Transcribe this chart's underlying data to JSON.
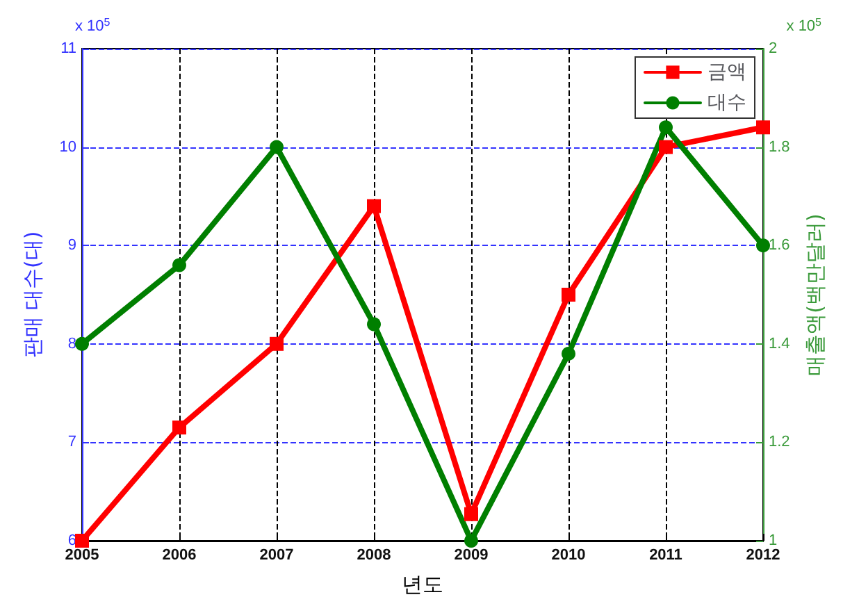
{
  "chart_data": {
    "type": "line",
    "xlabel": "년도",
    "ylabel": "판매 대수(대)",
    "y2label": "매출액(백만달러)",
    "categories": [
      "2005",
      "2006",
      "2007",
      "2008",
      "2009",
      "2010",
      "2011",
      "2012"
    ],
    "series": [
      {
        "name": "금액",
        "color": "#ff0000",
        "marker": "square",
        "values": [
          6.0,
          7.15,
          8.0,
          9.4,
          6.27,
          8.5,
          10.0,
          10.2
        ]
      },
      {
        "name": "대수",
        "color": "#007f00",
        "marker": "circle",
        "axis": "y2",
        "values": [
          1.4,
          1.56,
          1.8,
          1.44,
          1.0,
          1.38,
          1.84,
          1.6
        ]
      }
    ],
    "ylim": [
      6,
      11
    ],
    "yticks": [
      6,
      7,
      8,
      9,
      10,
      11
    ],
    "y2lim": [
      1,
      2
    ],
    "y2ticks": [
      1,
      1.2,
      1.4,
      1.6,
      1.8,
      2
    ],
    "annotations": [
      "x 10$^{5}$",
      "x 10$^{5}$"
    ],
    "grid": true,
    "legend": "top right",
    "line_style": "solid"
  }
}
